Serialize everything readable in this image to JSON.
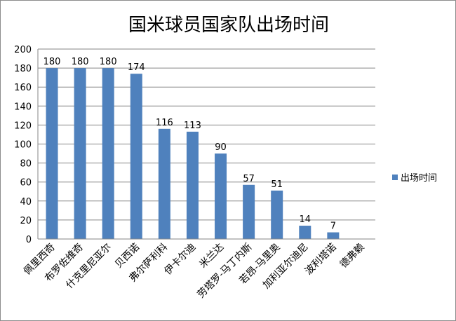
{
  "chart_data": {
    "type": "bar",
    "title": "国米球员国家队出场时间",
    "categories": [
      "佩里西奇",
      "布罗佐维奇",
      "什克里尼亚尔",
      "贝西诺",
      "弗尔萨利科",
      "伊卡尔迪",
      "米兰达",
      "劳塔罗-马丁内斯",
      "若昂-马里奥",
      "加利亚尔迪尼",
      "波利塔诺",
      "德弗赖"
    ],
    "series": [
      {
        "name": "出场时间",
        "values": [
          180,
          180,
          180,
          174,
          116,
          113,
          90,
          57,
          51,
          14,
          7,
          0
        ]
      }
    ],
    "data_labels": [
      "180",
      "180",
      "180",
      "174",
      "116",
      "113",
      "90",
      "57",
      "51",
      "14",
      "7",
      ""
    ],
    "ylim": [
      0,
      200
    ],
    "yticks": [
      0,
      20,
      40,
      60,
      80,
      100,
      120,
      140,
      160,
      180,
      200
    ],
    "grid": true,
    "legend_position": "right",
    "colors": {
      "bar": "#4f81bd",
      "grid": "#868686",
      "axis": "#868686"
    }
  }
}
